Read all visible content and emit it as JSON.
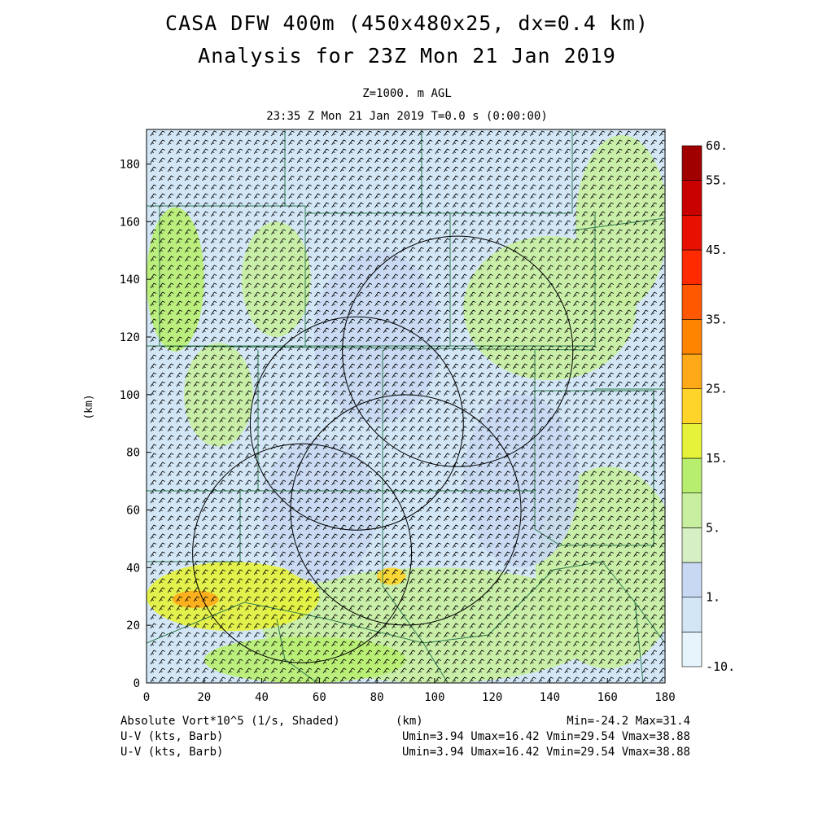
{
  "title": {
    "line1": "CASA DFW 400m (450x480x25, dx=0.4 km)",
    "line2": "Analysis for 23Z Mon 21 Jan 2019",
    "level": "Z=1000. m AGL",
    "time": "23:35 Z Mon 21 Jan 2019    T=0.0 s (0:00:00)"
  },
  "axes": {
    "xlabel": "(km)",
    "ylabel": "(km)",
    "x_ticks": [
      "0",
      "20",
      "40",
      "60",
      "80",
      "100",
      "120",
      "140",
      "160",
      "180"
    ],
    "y_ticks": [
      "0",
      "20",
      "40",
      "60",
      "80",
      "100",
      "120",
      "140",
      "160",
      "180"
    ],
    "xlim": [
      0,
      180
    ],
    "ylim": [
      0,
      192
    ]
  },
  "colorbar": {
    "labels": [
      "60.",
      "55.",
      "45.",
      "35.",
      "25.",
      "15.",
      "5.",
      "1.",
      "-10."
    ],
    "colors": [
      "#e6f4fb",
      "#d2e6f6",
      "#c8d8f2",
      "#d6f0c4",
      "#c8eea0",
      "#b8ee70",
      "#e6f23a",
      "#ffd42a",
      "#ffa818",
      "#ff8400",
      "#ff5800",
      "#ff2a00",
      "#e81000",
      "#c80000",
      "#a00000"
    ]
  },
  "footer": {
    "field": "Absolute Vort*10^5 (1/s, Shaded)",
    "units": "(km)",
    "minmax": "Min=-24.2 Max=31.4",
    "wind1": "U-V (kts, Barb)",
    "wind2": "U-V (kts, Barb)",
    "stats1": "Umin=3.94 Umax=16.42 Vmin=29.54 Vmax=38.88",
    "stats2": "Umin=3.94 Umax=16.42 Vmin=29.54 Vmax=38.88"
  },
  "map": {
    "radar_rings_km": [
      {
        "center": [
          108,
          115
        ],
        "radius": 40
      },
      {
        "center": [
          73,
          90
        ],
        "radius": 37
      },
      {
        "center": [
          90,
          60
        ],
        "radius": 40
      },
      {
        "center": [
          54,
          45
        ],
        "radius": 38
      }
    ],
    "shading": [
      {
        "cx": 10,
        "cy": 140,
        "rx": 10,
        "ry": 25,
        "color": "#b8ee70"
      },
      {
        "cx": 45,
        "cy": 140,
        "rx": 12,
        "ry": 20,
        "color": "#c8eea0"
      },
      {
        "cx": 25,
        "cy": 100,
        "rx": 12,
        "ry": 18,
        "color": "#c8eea0"
      },
      {
        "cx": 140,
        "cy": 130,
        "rx": 30,
        "ry": 25,
        "color": "#c8eea0"
      },
      {
        "cx": 165,
        "cy": 160,
        "rx": 16,
        "ry": 30,
        "color": "#c8eea0"
      },
      {
        "cx": 160,
        "cy": 40,
        "rx": 25,
        "ry": 35,
        "color": "#c8eea0"
      },
      {
        "cx": 100,
        "cy": 20,
        "rx": 60,
        "ry": 20,
        "color": "#c8eea0"
      },
      {
        "cx": 30,
        "cy": 30,
        "rx": 30,
        "ry": 12,
        "color": "#e6f23a"
      },
      {
        "cx": 17,
        "cy": 29,
        "rx": 8,
        "ry": 3,
        "color": "#ffa818"
      },
      {
        "cx": 85,
        "cy": 37,
        "rx": 5,
        "ry": 3,
        "color": "#ffd42a"
      },
      {
        "cx": 55,
        "cy": 8,
        "rx": 35,
        "ry": 8,
        "color": "#b8ee70"
      },
      {
        "cx": 130,
        "cy": 70,
        "rx": 20,
        "ry": 30,
        "color": "#c8d8f2"
      },
      {
        "cx": 80,
        "cy": 120,
        "rx": 22,
        "ry": 30,
        "color": "#c8d8f2"
      },
      {
        "cx": 60,
        "cy": 60,
        "rx": 20,
        "ry": 25,
        "color": "#c8d8f2"
      }
    ]
  }
}
